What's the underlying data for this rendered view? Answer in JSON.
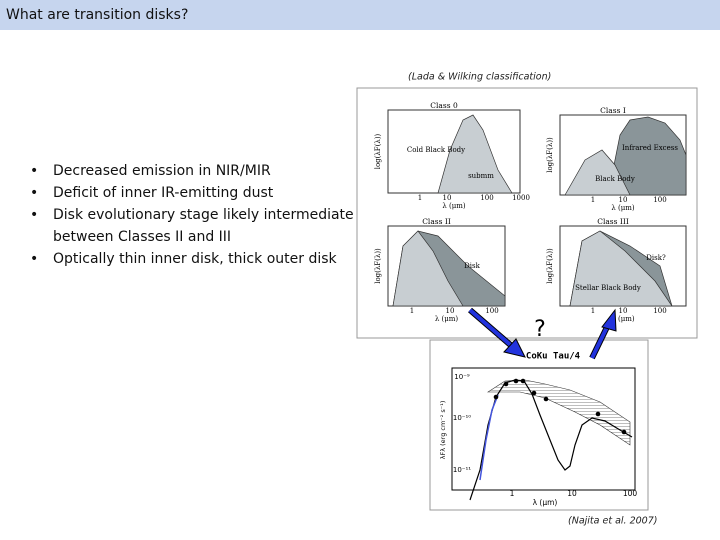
{
  "header": {
    "title": "What are transition disks?"
  },
  "caption": "(Lada & Wilking classification)",
  "bullets": [
    "Decreased emission in NIR/MIR",
    "Deficit of inner IR-emitting dust",
    "Disk evolutionary stage likely intermediate between Classes II and III",
    "Optically thin inner disk, thick outer disk"
  ],
  "class_figure": {
    "y_axis_label": "log(λF(λ))",
    "x_axis_label": "λ (μm)",
    "panels": [
      {
        "label": "Class 0",
        "annotations": [
          "Cold Black Body",
          "submm"
        ],
        "x_ticks": [
          "1",
          "10",
          "100",
          "1000"
        ]
      },
      {
        "label": "Class I",
        "annotations": [
          "Infrared Excess",
          "Black Body"
        ],
        "x_ticks": [
          "1",
          "10",
          "100"
        ]
      },
      {
        "label": "Class II",
        "annotations": [
          "Disk"
        ],
        "x_ticks": [
          "1",
          "10",
          "100"
        ]
      },
      {
        "label": "Class III",
        "annotations": [
          "Disk?",
          "Stellar Black Body"
        ],
        "x_ticks": [
          "1",
          "10",
          "100"
        ]
      }
    ]
  },
  "question_mark": "?",
  "sed_figure": {
    "title": "CoKu Tau/4",
    "y_axis_label": "λFλ (erg cm⁻² s⁻¹)",
    "x_axis_label": "λ (μm)",
    "y_ticks": [
      "10⁻⁹",
      "10⁻¹⁰",
      "10⁻¹¹"
    ],
    "x_ticks": [
      "1",
      "10",
      "100"
    ]
  },
  "citation": "(Najita et al. 2007)"
}
